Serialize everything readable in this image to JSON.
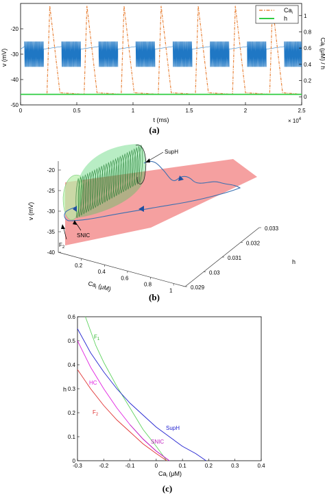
{
  "panels": {
    "a": {
      "label": "(a)",
      "xlabel": "t (ms)",
      "ylabel_left": "v (mV)",
      "ylabel_right_pre": "Ca",
      "ylabel_right_sub": "i",
      "ylabel_right_post": " (μM) / h",
      "x_multiplier_base": "× 10",
      "x_multiplier_exp": "4",
      "legend": {
        "ca_main": "Ca",
        "ca_sub": "i",
        "h": "h"
      }
    },
    "b": {
      "label": "(b)",
      "zlabel": "v (mV)",
      "xlabel_pre": "Ca",
      "xlabel_sub": "i",
      "xlabel_post": " (μM)",
      "ylabel": "h",
      "annotations": {
        "suph": "SupH",
        "snic": "SNIC",
        "f2_main": "F",
        "f2_sub": "2"
      }
    },
    "c": {
      "label": "(c)",
      "xlabel_pre": "Ca",
      "xlabel_sub": "i",
      "xlabel_post": " (μM)",
      "ylabel": "h",
      "curve_labels": {
        "f1_main": "F",
        "f1_sub": "1",
        "hc": "HC",
        "f2_main": "F",
        "f2_sub": "2",
        "suph": "SupH",
        "snic": "SNIC"
      }
    }
  },
  "colors": {
    "voltage": "#1f77c4",
    "calcium": "#e8833a",
    "h": "#2ecc40",
    "f1": "#5fd35f",
    "hc": "#e020e0",
    "f2": "#e03030",
    "suph": "#2020d0",
    "snic": "#c020c0",
    "plane": "#f28080",
    "cylinder": "#33cc55"
  },
  "chart_data": [
    {
      "type": "line",
      "panel": "a",
      "x_range": [
        0,
        25000
      ],
      "x_ticks": [
        "0",
        "0.5",
        "1",
        "1.5",
        "2",
        "2.5"
      ],
      "y_left_range": [
        -50,
        -10
      ],
      "y_left_ticks": [
        "-20",
        "-30",
        "-40",
        "-50"
      ],
      "y_right_range": [
        -0.1,
        1.15
      ],
      "y_right_ticks": [
        "1",
        "0.8",
        "0.6",
        "0.4",
        "0.2",
        "0"
      ],
      "series": [
        {
          "name": "Ca_i",
          "axis": "right",
          "pattern": "spike",
          "period": 3300,
          "first_peak": 2600,
          "peak": 1.12,
          "baseline": 0.03
        },
        {
          "name": "h",
          "axis": "right",
          "pattern": "flat",
          "value": 0.03
        },
        {
          "axis": "left",
          "pattern": "bursting",
          "burst_centers": [
            1200,
            4500,
            7800,
            11100,
            14400,
            17700,
            21000,
            24300
          ],
          "burst_width": 1700,
          "range": [
            -35,
            -25
          ],
          "interburst": -28
        }
      ]
    },
    {
      "type": "line",
      "panel": "b",
      "x_range": [
        0,
        1.1
      ],
      "x_ticks": [
        "0.2",
        "0.4",
        "0.6",
        "0.8",
        "1"
      ],
      "y_range": [
        0.029,
        0.033
      ],
      "y_ticks": [
        "0.029",
        "0.03",
        "0.031",
        "0.032",
        "0.033"
      ],
      "z_range": [
        -40,
        -15
      ],
      "z_ticks": [
        "-20",
        "-25",
        "-30",
        "-35",
        "-40"
      ]
    },
    {
      "type": "line",
      "panel": "c",
      "x_range": [
        -0.3,
        0.4
      ],
      "x_ticks": [
        "-0.3",
        "-0.2",
        "-0.1",
        "0",
        "0.1",
        "0.2",
        "0.3",
        "0.4"
      ],
      "y_range": [
        0,
        0.6
      ],
      "y_ticks": [
        "0",
        "0.1",
        "0.2",
        "0.3",
        "0.4",
        "0.5",
        "0.6"
      ],
      "series": [
        {
          "name": "F1",
          "x": [
            -0.27,
            -0.23,
            -0.2,
            -0.15,
            -0.1,
            -0.05,
            0.0,
            0.04
          ],
          "y": [
            0.6,
            0.48,
            0.41,
            0.31,
            0.22,
            0.13,
            0.06,
            0.0
          ]
        },
        {
          "name": "HC",
          "x": [
            -0.3,
            -0.25,
            -0.2,
            -0.15,
            -0.1,
            -0.05,
            0.0,
            0.05
          ],
          "y": [
            0.5,
            0.39,
            0.3,
            0.22,
            0.15,
            0.09,
            0.04,
            0.0
          ]
        },
        {
          "name": "F2",
          "x": [
            -0.3,
            -0.25,
            -0.2,
            -0.15,
            -0.1,
            -0.05,
            0.0,
            0.04
          ],
          "y": [
            0.38,
            0.3,
            0.23,
            0.17,
            0.12,
            0.07,
            0.03,
            0.0
          ]
        },
        {
          "name": "SupH",
          "x": [
            -0.3,
            -0.25,
            -0.2,
            -0.15,
            -0.1,
            -0.05,
            0.0,
            0.05,
            0.1,
            0.15,
            0.19
          ],
          "y": [
            0.55,
            0.45,
            0.37,
            0.3,
            0.24,
            0.19,
            0.14,
            0.1,
            0.06,
            0.03,
            0.0
          ]
        },
        {
          "name": "SNIC",
          "x": [
            -0.1,
            -0.05,
            0.0,
            0.05
          ],
          "y": [
            0.15,
            0.09,
            0.04,
            0.0
          ]
        }
      ]
    }
  ]
}
